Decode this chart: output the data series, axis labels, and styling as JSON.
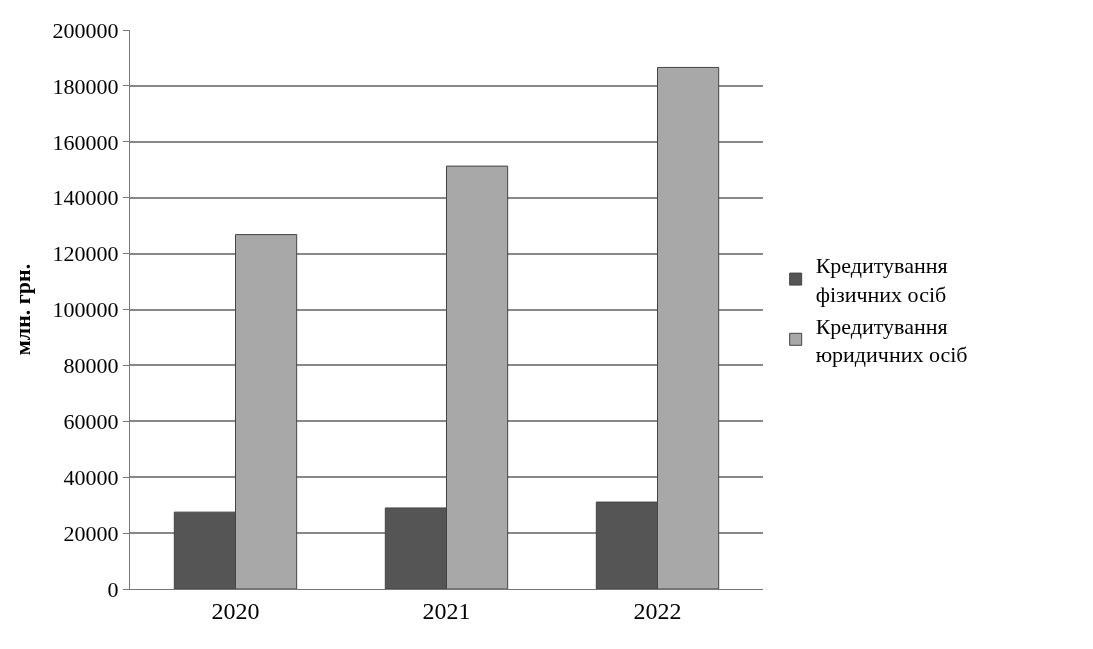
{
  "chart_data": {
    "type": "bar",
    "ylabel": "млн. грн.",
    "categories": [
      "2020",
      "2021",
      "2022"
    ],
    "series": [
      {
        "name": "Кредитування фізичних осіб",
        "color": "#555555",
        "values": [
          27500,
          29000,
          31100
        ]
      },
      {
        "name": "Кредитування юридичних осіб",
        "color": "#a8a8a8",
        "values": [
          126800,
          151300,
          186600
        ]
      }
    ],
    "ylim": [
      0,
      200000
    ],
    "yticks": [
      0,
      20000,
      40000,
      60000,
      80000,
      100000,
      120000,
      140000,
      160000,
      180000,
      200000
    ],
    "grid": "y",
    "legend": "right"
  }
}
